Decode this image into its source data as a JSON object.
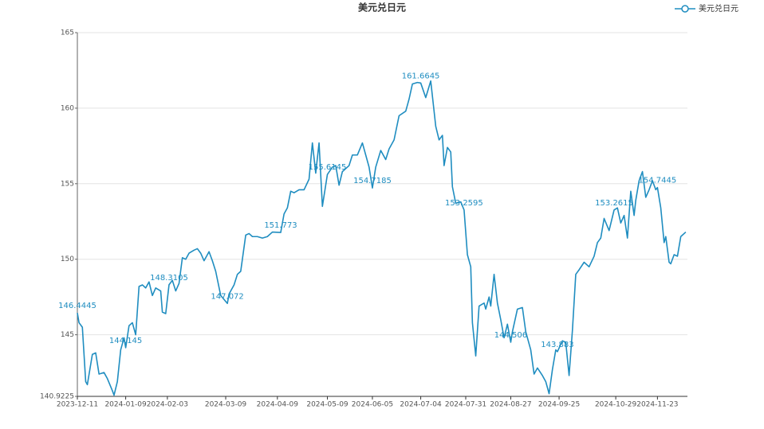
{
  "chart_data": {
    "type": "line",
    "title": "美元兑日元",
    "legend": "top-right",
    "grid": true,
    "ylim": [
      140.9225,
      165
    ],
    "yticks": [
      140.9225,
      145,
      150,
      155,
      160,
      165
    ],
    "xlim": [
      "2023-12-11",
      "2024-12-11"
    ],
    "xticks": [
      "2023-12-11",
      "2024-01-09",
      "2024-02-03",
      "2024-03-09",
      "2024-04-09",
      "2024-05-09",
      "2024-06-05",
      "2024-07-04",
      "2024-07-31",
      "2024-08-27",
      "2024-09-25",
      "2024-10-29",
      "2024-11-23"
    ],
    "x": [
      "2023-12-11",
      "2023-12-12",
      "2023-12-14",
      "2023-12-16",
      "2023-12-17",
      "2023-12-20",
      "2023-12-22",
      "2023-12-24",
      "2023-12-27",
      "2023-12-29",
      "2024-01-01",
      "2024-01-02",
      "2024-01-04",
      "2024-01-06",
      "2024-01-08",
      "2024-01-09",
      "2024-01-11",
      "2024-01-13",
      "2024-01-15",
      "2024-01-17",
      "2024-01-19",
      "2024-01-21",
      "2024-01-23",
      "2024-01-25",
      "2024-01-27",
      "2024-01-30",
      "2024-01-31",
      "2024-02-02",
      "2024-02-04",
      "2024-02-06",
      "2024-02-08",
      "2024-02-10",
      "2024-02-12",
      "2024-02-14",
      "2024-02-16",
      "2024-02-19",
      "2024-02-21",
      "2024-02-23",
      "2024-02-25",
      "2024-02-28",
      "2024-03-01",
      "2024-03-03",
      "2024-03-06",
      "2024-03-10",
      "2024-03-11",
      "2024-03-14",
      "2024-03-16",
      "2024-03-18",
      "2024-03-21",
      "2024-03-23",
      "2024-03-25",
      "2024-03-28",
      "2024-03-31",
      "2024-04-03",
      "2024-04-06",
      "2024-04-11",
      "2024-04-13",
      "2024-04-15",
      "2024-04-17",
      "2024-04-19",
      "2024-04-22",
      "2024-04-25",
      "2024-04-28",
      "2024-04-30",
      "2024-05-02",
      "2024-05-04",
      "2024-05-06",
      "2024-05-09",
      "2024-05-12",
      "2024-05-14",
      "2024-05-16",
      "2024-05-18",
      "2024-05-22",
      "2024-05-24",
      "2024-05-27",
      "2024-05-30",
      "2024-06-01",
      "2024-06-03",
      "2024-06-05",
      "2024-06-07",
      "2024-06-10",
      "2024-06-13",
      "2024-06-15",
      "2024-06-18",
      "2024-06-21",
      "2024-06-25",
      "2024-06-27",
      "2024-06-29",
      "2024-07-02",
      "2024-07-04",
      "2024-07-07",
      "2024-07-10",
      "2024-07-13",
      "2024-07-15",
      "2024-07-17",
      "2024-07-18",
      "2024-07-20",
      "2024-07-22",
      "2024-07-23",
      "2024-07-25",
      "2024-07-28",
      "2024-07-30",
      "2024-08-01",
      "2024-08-03",
      "2024-08-04",
      "2024-08-06",
      "2024-08-08",
      "2024-08-11",
      "2024-08-12",
      "2024-08-14",
      "2024-08-15",
      "2024-08-17",
      "2024-08-19",
      "2024-08-21",
      "2024-08-23",
      "2024-08-25",
      "2024-08-27",
      "2024-08-28",
      "2024-08-31",
      "2024-09-03",
      "2024-09-05",
      "2024-09-08",
      "2024-09-10",
      "2024-09-12",
      "2024-09-15",
      "2024-09-17",
      "2024-09-19",
      "2024-09-21",
      "2024-09-23",
      "2024-09-24",
      "2024-09-27",
      "2024-09-29",
      "2024-10-01",
      "2024-10-03",
      "2024-10-05",
      "2024-10-07",
      "2024-10-10",
      "2024-10-13",
      "2024-10-16",
      "2024-10-18",
      "2024-10-20",
      "2024-10-22",
      "2024-10-25",
      "2024-10-28",
      "2024-10-30",
      "2024-11-01",
      "2024-11-03",
      "2024-11-05",
      "2024-11-07",
      "2024-11-09",
      "2024-11-10",
      "2024-11-12",
      "2024-11-14",
      "2024-11-16",
      "2024-11-18",
      "2024-11-20",
      "2024-11-22",
      "2024-11-23",
      "2024-11-25",
      "2024-11-27",
      "2024-11-28",
      "2024-11-30",
      "2024-12-01",
      "2024-12-03",
      "2024-12-05",
      "2024-12-07",
      "2024-12-10"
    ],
    "series": [
      {
        "name": "美元兑日元",
        "color": "#1f8dc0",
        "values": [
          146.4445,
          145.8,
          145.5,
          141.9,
          141.7,
          143.7,
          143.8,
          142.4,
          142.5,
          142.1,
          141.3,
          141,
          141.9,
          144,
          144.8,
          144.145,
          145.6,
          145.8,
          145,
          148.2,
          148.3,
          148.1,
          148.5,
          147.6,
          148.1,
          147.9,
          146.5,
          146.4,
          148.3105,
          148.6,
          147.9,
          148.4,
          150.1,
          150,
          150.4,
          150.6,
          150.7,
          150.4,
          149.9,
          150.5,
          149.9,
          149.2,
          147.6,
          147.072,
          147.7,
          148.3,
          149,
          149.2,
          151.6,
          151.7,
          151.5,
          151.5,
          151.4,
          151.5,
          151.8,
          151.773,
          153,
          153.4,
          154.5,
          154.4,
          154.6,
          154.6,
          155.3,
          157.7,
          155.7,
          157.7,
          153.5,
          155.6145,
          156.1,
          156.2,
          154.9,
          155.8,
          156.2,
          156.9,
          156.9,
          157.7,
          156.9,
          156.1,
          154.7185,
          156.1,
          157.2,
          156.6,
          157.3,
          157.9,
          159.5,
          159.8,
          160.6,
          161.6,
          161.7,
          161.6645,
          160.7,
          161.8,
          158.8,
          157.9,
          158.2,
          156.2,
          157.4,
          157.1,
          154.8,
          153.7,
          153.8,
          153.2595,
          150.3,
          149.5,
          145.8,
          143.6,
          146.9,
          147.1,
          146.7,
          147.5,
          146.9,
          149,
          147.1,
          146,
          144.8,
          145.7,
          144.506,
          145.2,
          146.7,
          146.8,
          145.2,
          144,
          142.4,
          142.8,
          142.3,
          141.9,
          141.1,
          142.7,
          144,
          143.883,
          144.6,
          144.5,
          142.3,
          145.3,
          149,
          149.3,
          149.8,
          149.5,
          150.2,
          151.1,
          151.4,
          152.7,
          151.9,
          153.2615,
          153.4,
          152.4,
          152.9,
          151.4,
          154.5,
          152.9,
          153.9,
          155.2,
          155.8,
          154.1,
          154.6,
          155.2,
          154.6,
          154.7445,
          153.4,
          151.1,
          151.5,
          149.8,
          149.7,
          150.3,
          150.2,
          151.5,
          151.8
        ],
        "value_labels": [
          "146.4445",
          null,
          null,
          null,
          null,
          null,
          null,
          null,
          null,
          null,
          null,
          null,
          null,
          null,
          null,
          "144.145",
          null,
          null,
          null,
          null,
          null,
          null,
          null,
          null,
          null,
          null,
          null,
          null,
          "148.3105",
          null,
          null,
          null,
          null,
          null,
          null,
          null,
          null,
          null,
          null,
          null,
          null,
          null,
          null,
          "147.072",
          null,
          null,
          null,
          null,
          null,
          null,
          null,
          null,
          null,
          null,
          null,
          "151.773",
          null,
          null,
          null,
          null,
          null,
          null,
          null,
          null,
          null,
          null,
          null,
          "155.6145",
          null,
          null,
          null,
          null,
          null,
          null,
          null,
          null,
          null,
          null,
          "154.7185",
          null,
          null,
          null,
          null,
          null,
          null,
          null,
          null,
          null,
          null,
          "161.6645",
          null,
          null,
          null,
          null,
          null,
          null,
          null,
          null,
          null,
          null,
          null,
          "153.2595",
          null,
          null,
          null,
          null,
          null,
          null,
          null,
          null,
          null,
          null,
          null,
          null,
          null,
          null,
          "144.506",
          null,
          null,
          null,
          null,
          null,
          null,
          null,
          null,
          null,
          null,
          null,
          null,
          "143.883",
          null,
          null,
          null,
          null,
          null,
          null,
          null,
          null,
          null,
          null,
          null,
          null,
          null,
          "153.2615",
          null,
          null,
          null,
          null,
          null,
          null,
          null,
          null,
          null,
          null,
          null,
          null,
          null,
          "154.7445",
          null,
          null,
          null,
          null,
          null,
          null,
          null,
          null,
          null
        ]
      }
    ]
  }
}
